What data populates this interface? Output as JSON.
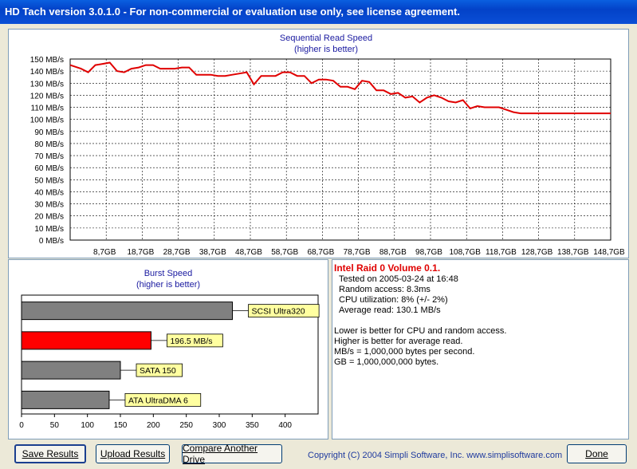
{
  "window": {
    "title": "HD Tach version 3.0.1.0  - For non-commercial or evaluation use only, see license agreement."
  },
  "chart_data": [
    {
      "type": "line",
      "title": "Sequential Read Speed",
      "subtitle": "(higher is better)",
      "color": "#e00000",
      "ylim": [
        0,
        150
      ],
      "ytick_step": 10,
      "ytick_labels": [
        "0 MB/s",
        "10 MB/s",
        "20 MB/s",
        "30 MB/s",
        "40 MB/s",
        "50 MB/s",
        "60 MB/s",
        "70 MB/s",
        "80 MB/s",
        "90 MB/s",
        "100 MB/s",
        "110 MB/s",
        "120 MB/s",
        "130 MB/s",
        "140 MB/s",
        "150 MB/s"
      ],
      "xtick_labels": [
        "8,7GB",
        "18,7GB",
        "28,7GB",
        "38,7GB",
        "48,7GB",
        "58,7GB",
        "68,7GB",
        "78,7GB",
        "88,7GB",
        "98,7GB",
        "108,7GB",
        "118,7GB",
        "128,7GB",
        "138,7GB",
        "148,7GB"
      ],
      "xlim": [
        0,
        150
      ],
      "x": [
        0,
        3,
        5,
        7,
        9,
        11,
        13,
        15,
        17,
        19,
        21,
        23,
        25,
        27,
        29,
        31,
        33,
        35,
        37,
        39,
        41,
        43,
        45,
        47,
        49,
        51,
        53,
        55,
        57,
        59,
        61,
        63,
        65,
        67,
        69,
        71,
        73,
        75,
        77,
        79,
        81,
        83,
        85,
        87,
        89,
        91,
        93,
        95,
        97,
        99,
        101,
        103,
        105,
        107,
        109,
        111,
        113,
        115,
        117,
        119,
        121,
        123,
        125,
        127,
        129,
        131,
        133,
        135,
        137,
        139,
        141,
        143,
        145,
        147,
        150
      ],
      "y": [
        145,
        142,
        139,
        145,
        146,
        147,
        140,
        139,
        142,
        143,
        145,
        145,
        142,
        142,
        142,
        143,
        143,
        137,
        137,
        137,
        136,
        136,
        137,
        138,
        139,
        129,
        136,
        136,
        136,
        139,
        139,
        136,
        136,
        130,
        133,
        133,
        132,
        127,
        127,
        125,
        132,
        131,
        124,
        124,
        121,
        122,
        118,
        119,
        114,
        118,
        120,
        118,
        115,
        114,
        116,
        109,
        111,
        110,
        110,
        110,
        108,
        106,
        105,
        105,
        105,
        105,
        105,
        105,
        105,
        105,
        105,
        105,
        105,
        105,
        105
      ]
    },
    {
      "type": "bar",
      "title": "Burst Speed",
      "subtitle": "(higher is better)",
      "xlim": [
        0,
        450
      ],
      "xtick_labels": [
        "0",
        "50",
        "100",
        "150",
        "200",
        "250",
        "300",
        "350",
        "400"
      ],
      "categories": [
        "SCSI Ultra320",
        "196.5 MB/s",
        "SATA 150",
        "ATA UltraDMA 6"
      ],
      "values": [
        320,
        196.5,
        150,
        133
      ],
      "colors": [
        "#808080",
        "#ff0000",
        "#808080",
        "#808080"
      ]
    }
  ],
  "info": {
    "drive_name": "Intel Raid 0 Volume 0.1.",
    "tested_on": "Tested on 2005-03-24 at 16:48",
    "random_access": "Random access: 8.3ms",
    "cpu_utilization": "CPU utilization: 8% (+/- 2%)",
    "average_read": "Average read: 130.1 MB/s",
    "note1": "Lower is better for CPU and random access.",
    "note2": "Higher is better for average read.",
    "note3": "MB/s = 1,000,000 bytes per second.",
    "note4": "GB = 1,000,000,000 bytes."
  },
  "buttons": {
    "save": "Save Results",
    "upload": "Upload Results",
    "compare": "Compare Another Drive",
    "done": "Done"
  },
  "footer": {
    "copyright": "Copyright (C) 2004 Simpli Software, Inc. www.simplisoftware.com"
  }
}
